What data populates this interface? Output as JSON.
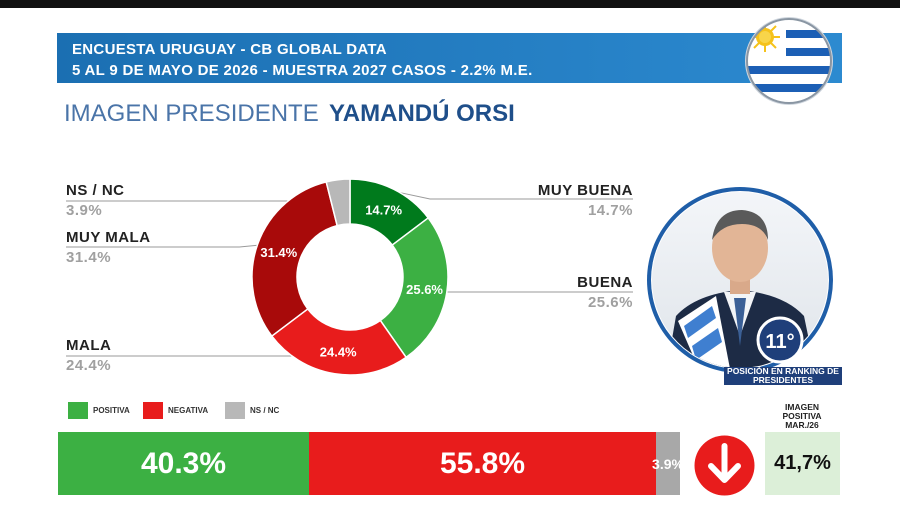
{
  "header": {
    "line1": "ENCUESTA URUGUAY - CB GLOBAL DATA",
    "line2": "5 AL 9 DE MAYO DE 2026 - MUESTRA 2027 CASOS - 2.2% M.E."
  },
  "title": {
    "prefix": "IMAGEN PRESIDENTE",
    "name": "YAMANDÚ ORSI"
  },
  "colors": {
    "muy_buena": "#007a1c",
    "buena": "#3cb043",
    "mala": "#e81c1c",
    "muy_mala": "#a80a0a",
    "ns_nc": "#b8b8b8",
    "header": "#1b6fb2"
  },
  "chart_data": {
    "type": "pie",
    "title": "",
    "slices": [
      {
        "key": "muy_buena",
        "label": "MUY BUENA",
        "value": 14.7,
        "text": "14.7%"
      },
      {
        "key": "buena",
        "label": "BUENA",
        "value": 25.6,
        "text": "25.6%"
      },
      {
        "key": "mala",
        "label": "MALA",
        "value": 24.4,
        "text": "24.4%"
      },
      {
        "key": "muy_mala",
        "label": "MUY MALA",
        "value": 31.4,
        "text": "31.4%"
      },
      {
        "key": "ns_nc",
        "label": "NS / NC",
        "value": 3.9,
        "text": "3.9%"
      }
    ],
    "summary": [
      {
        "key": "positiva",
        "label": "POSITIVA",
        "value": 40.3,
        "text": "40.3%"
      },
      {
        "key": "negativa",
        "label": "NEGATIVA",
        "value": 55.8,
        "text": "55.8%"
      },
      {
        "key": "ns_nc",
        "label": "NS / NC",
        "value": 3.9,
        "text": "3.9%"
      }
    ]
  },
  "ranking": {
    "position": "11°",
    "label": "POSICIÓN EN RANKING DE PRESIDENTES"
  },
  "previous": {
    "heading": "IMAGEN POSITIVA MAR./26",
    "value": "41,7%"
  },
  "trend_icon": "down-arrow-icon"
}
